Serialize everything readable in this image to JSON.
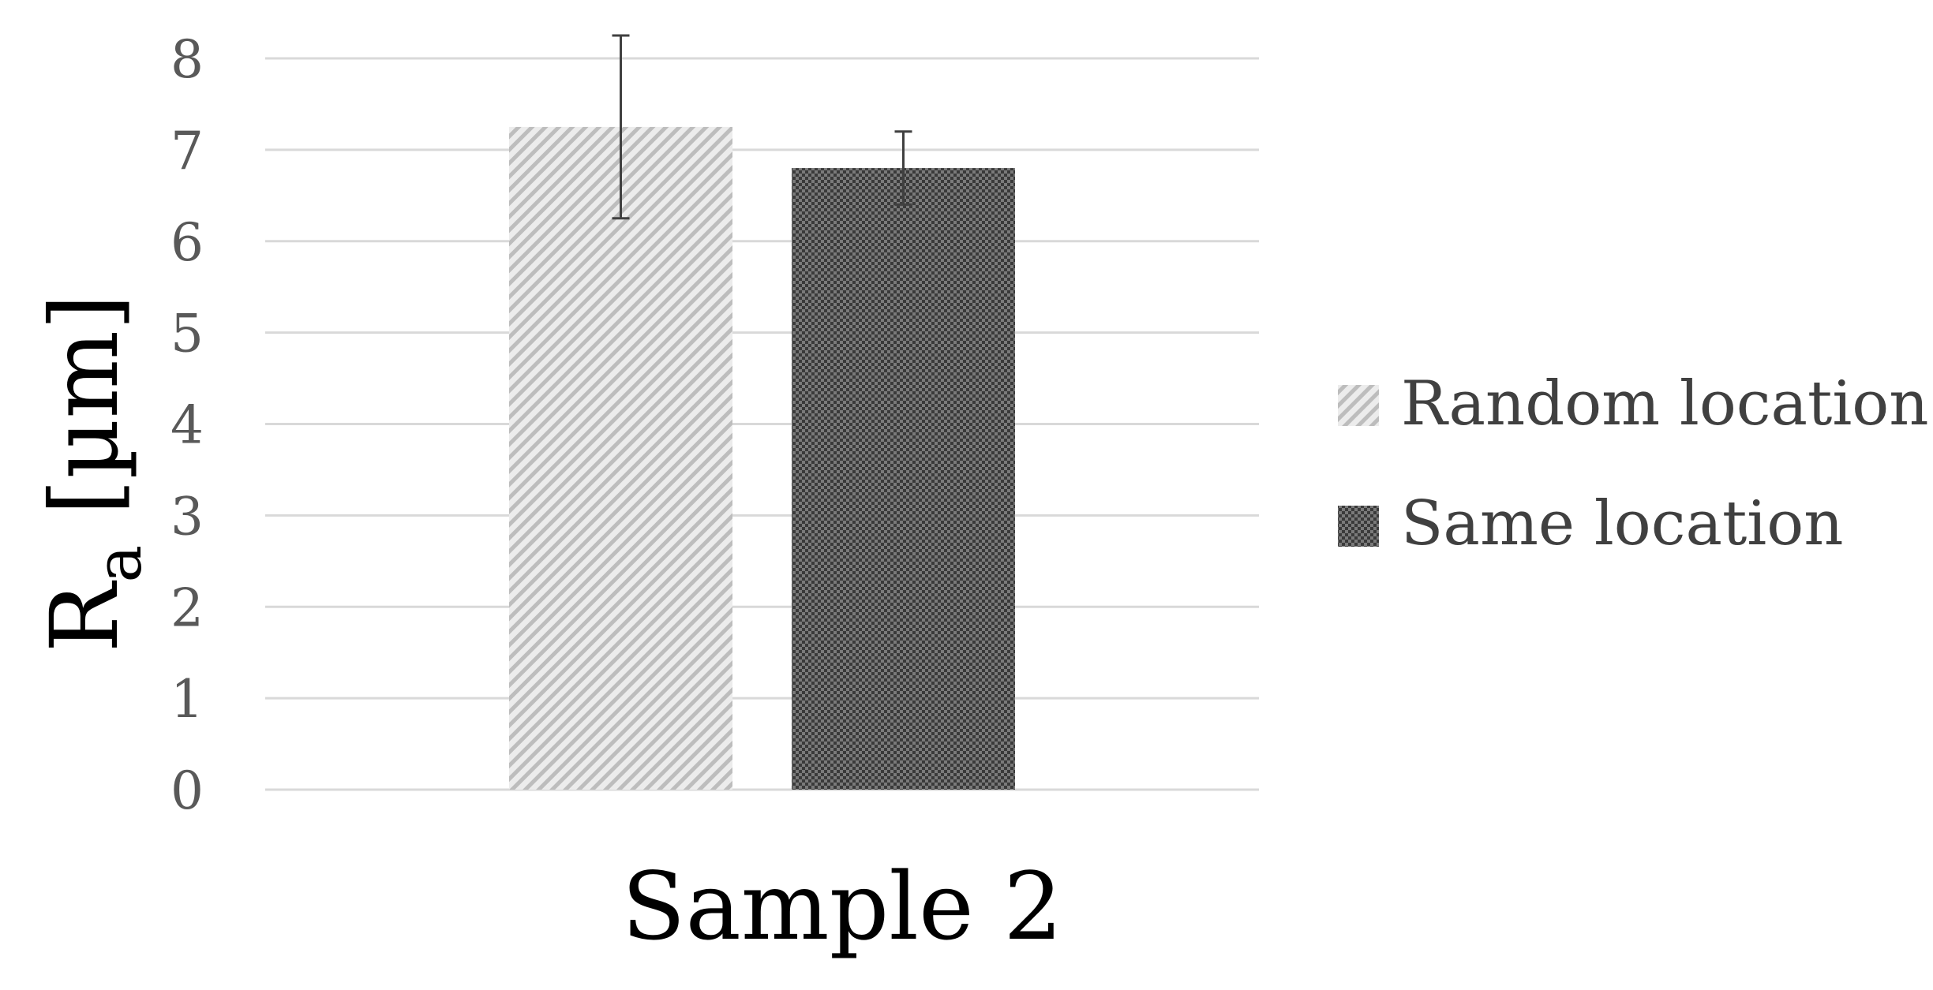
{
  "chart_data": {
    "type": "bar",
    "categories": [
      "Sample 2"
    ],
    "series": [
      {
        "name": "Random location",
        "values": [
          7.25
        ],
        "error": [
          1.0
        ],
        "pattern": "diagonal-hatch",
        "color": "#c8c8c8"
      },
      {
        "name": "Same location",
        "values": [
          6.8
        ],
        "error": [
          0.4
        ],
        "pattern": "dense-dot",
        "color": "#505050"
      }
    ],
    "ylabel_main": "R",
    "ylabel_sub": "a",
    "ylabel_unit": " [µm]",
    "ylim": [
      0,
      8
    ],
    "yticks": [
      "0",
      "1",
      "2",
      "3",
      "4",
      "5",
      "6",
      "7",
      "8"
    ],
    "grid": true,
    "legend_position": "right",
    "colors": {
      "grid": "#d9d9d9",
      "tick_text": "#595959",
      "axis_title": "#000000",
      "error_bar": "#404040",
      "legend_text": "#404040"
    }
  }
}
